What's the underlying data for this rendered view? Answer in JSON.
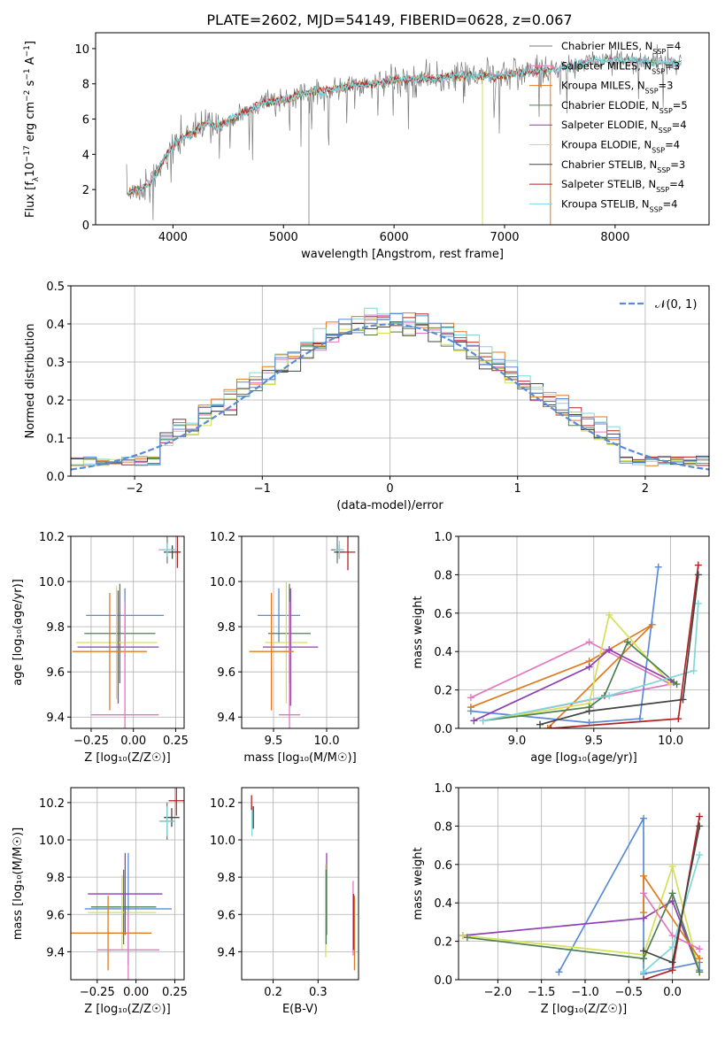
{
  "figure_title": "PLATE=2602, MJD=54149, FIBERID=0628, z=0.067",
  "colors": {
    "chabrier_miles": "#7a7a7a",
    "salpeter_miles": "#e377c2",
    "kroupa_miles": "#e07a1f",
    "chabrier_elodie": "#4f7f4f",
    "salpeter_elodie": "#8e3fb5",
    "kroupa_elodie": "#d4e157",
    "chabrier_stelib": "#444444",
    "salpeter_stelib": "#b22222",
    "kroupa_stelib": "#7fd6d8",
    "normal": "#5b8bd6"
  },
  "chart_data": [
    {
      "id": "spectrum",
      "type": "line",
      "xlabel": "wavelength [Angstrom, rest frame]",
      "ylabel_parts": [
        "Flux [f",
        "λ",
        "10",
        "−17",
        " erg cm",
        "−2",
        " s",
        "−1",
        " A",
        "−1",
        "]"
      ],
      "xlim": [
        3300,
        8850
      ],
      "ylim": [
        0,
        10.9
      ],
      "xticks": [
        4000,
        5000,
        6000,
        7000,
        8000
      ],
      "yticks": [
        0,
        2,
        4,
        6,
        8,
        10
      ],
      "legend": [
        {
          "label": "Chabrier MILES, N",
          "sub": "SSP",
          "tail": "=4",
          "color": "chabrier_miles"
        },
        {
          "label": "Salpeter MILES, N",
          "sub": "SSP",
          "tail": "=3",
          "color": "salpeter_miles"
        },
        {
          "label": "Kroupa MILES, N",
          "sub": "SSP",
          "tail": "=3",
          "color": "kroupa_miles"
        },
        {
          "label": "Chabrier ELODIE, N",
          "sub": "SSP",
          "tail": "=5",
          "color": "chabrier_elodie"
        },
        {
          "label": "Salpeter ELODIE, N",
          "sub": "SSP",
          "tail": "=4",
          "color": "salpeter_elodie"
        },
        {
          "label": "Kroupa ELODIE, N",
          "sub": "SSP",
          "tail": "=4",
          "color": "kroupa_elodie"
        },
        {
          "label": "Chabrier STELIB, N",
          "sub": "SSP",
          "tail": "=3",
          "color": "chabrier_stelib"
        },
        {
          "label": "Salpeter STELIB, N",
          "sub": "SSP",
          "tail": "=4",
          "color": "salpeter_stelib"
        },
        {
          "label": "Kroupa STELIB, N",
          "sub": "SSP",
          "tail": "=4",
          "color": "kroupa_stelib"
        }
      ],
      "continuum_x": [
        3600,
        3700,
        3800,
        3900,
        4000,
        4100,
        4200,
        4300,
        4400,
        4500,
        4600,
        4700,
        4800,
        4900,
        5000,
        5200,
        5400,
        5600,
        5800,
        6000,
        6200,
        6400,
        6600,
        6800,
        7000,
        7200,
        7400,
        7600,
        7800,
        8000,
        8200,
        8400,
        8600
      ],
      "continuum_y": [
        1.8,
        2.0,
        2.4,
        3.5,
        4.5,
        5.0,
        5.3,
        5.8,
        5.6,
        5.8,
        6.3,
        6.5,
        6.9,
        7.0,
        7.1,
        7.5,
        7.6,
        7.9,
        8.0,
        8.2,
        8.3,
        8.3,
        8.5,
        8.4,
        8.5,
        8.7,
        8.8,
        9.0,
        9.3,
        9.4,
        9.3,
        9.2,
        9.2
      ]
    },
    {
      "id": "residuals",
      "type": "histogram",
      "xlabel": "(data-model)/error",
      "ylabel": "Normed distribution",
      "xlim": [
        -2.5,
        2.5
      ],
      "ylim": [
        0,
        0.5
      ],
      "xticks": [
        -2,
        -1,
        0,
        1,
        2
      ],
      "xtick_labels": [
        "−2",
        "−1",
        "0",
        "1",
        "2"
      ],
      "yticks": [
        0.0,
        0.1,
        0.2,
        0.3,
        0.4,
        0.5
      ],
      "ytick_labels": [
        "0.0",
        "0.1",
        "0.2",
        "0.3",
        "0.4",
        "0.5"
      ],
      "bin_width": 0.1,
      "legend_label": "𝒩(0, 1)",
      "series": [
        {
          "color": "salpeter_miles",
          "shift": 0.0
        },
        {
          "color": "kroupa_miles",
          "shift": 0.012
        },
        {
          "color": "chabrier_elodie",
          "shift": -0.01
        },
        {
          "color": "salpeter_stelib",
          "shift": 0.008
        },
        {
          "color": "kroupa_elodie",
          "shift": -0.006
        },
        {
          "color": "kroupa_stelib",
          "shift": 0.014
        },
        {
          "color": "chabrier_stelib",
          "shift": -0.012
        },
        {
          "color": "normal",
          "shift": 0.004
        }
      ]
    },
    {
      "id": "age-vs-Z",
      "type": "errorbar",
      "xlabel": "Z [log₁₀(Z/Z☉)]",
      "ylabel": "age  [log₁₀(age/yr)]",
      "xlim": [
        -0.37,
        0.3
      ],
      "ylim": [
        9.35,
        10.2
      ],
      "xticks": [
        -0.25,
        0.0,
        0.25
      ],
      "xtick_labels": [
        "−0.25",
        "0.00",
        "0.25"
      ],
      "yticks": [
        9.4,
        9.6,
        9.8,
        10.0,
        10.2
      ],
      "ytick_labels": [
        "9.4",
        "9.6",
        "9.8",
        "10.0",
        "10.2"
      ],
      "points": [
        {
          "color": "normal",
          "x": -0.05,
          "y": 9.85,
          "xe": 0.23,
          "ye": 0.12
        },
        {
          "color": "chabrier_elodie",
          "x": -0.08,
          "y": 9.77,
          "xe": 0.21,
          "ye": 0.22
        },
        {
          "color": "kroupa_elodie",
          "x": -0.1,
          "y": 9.73,
          "xe": 0.24,
          "ye": 0.25
        },
        {
          "color": "salpeter_elodie",
          "x": -0.09,
          "y": 9.71,
          "xe": 0.24,
          "ye": 0.25
        },
        {
          "color": "kroupa_miles",
          "x": -0.14,
          "y": 9.69,
          "xe": 0.22,
          "ye": 0.26
        },
        {
          "color": "salpeter_miles",
          "x": -0.05,
          "y": 9.41,
          "xe": 0.2,
          "ye": 0.5
        },
        {
          "color": "chabrier_miles",
          "x": 0.2,
          "y": 10.14,
          "xe": 0.05,
          "ye": 0.06
        },
        {
          "color": "chabrier_stelib",
          "x": 0.23,
          "y": 10.13,
          "xe": 0.05,
          "ye": 0.03
        },
        {
          "color": "salpeter_stelib",
          "x": 0.26,
          "y": 10.13,
          "xe": 0.02,
          "ye": 0.07
        },
        {
          "color": "kroupa_stelib",
          "x": 0.2,
          "y": 10.14,
          "xe": 0.05,
          "ye": 0.03
        }
      ]
    },
    {
      "id": "age-vs-mass",
      "type": "errorbar",
      "xlabel": "mass [log₁₀(M/M☉)]",
      "ylabel": "",
      "xlim": [
        9.2,
        10.3
      ],
      "ylim": [
        9.35,
        10.2
      ],
      "xticks": [
        9.5,
        10.0
      ],
      "xtick_labels": [
        "9.5",
        "10.0"
      ],
      "yticks": [
        9.4,
        9.6,
        9.8,
        10.0,
        10.2
      ],
      "ytick_labels": [
        "9.4",
        "9.6",
        "9.8",
        "10.0",
        "10.2"
      ],
      "points": [
        {
          "color": "normal",
          "x": 9.55,
          "y": 9.85,
          "xe": 0.2,
          "ye": 0.12
        },
        {
          "color": "chabrier_elodie",
          "x": 9.65,
          "y": 9.77,
          "xe": 0.2,
          "ye": 0.22
        },
        {
          "color": "kroupa_elodie",
          "x": 9.62,
          "y": 9.73,
          "xe": 0.2,
          "ye": 0.27
        },
        {
          "color": "salpeter_elodie",
          "x": 9.66,
          "y": 9.71,
          "xe": 0.26,
          "ye": 0.26
        },
        {
          "color": "kroupa_miles",
          "x": 9.48,
          "y": 9.69,
          "xe": 0.21,
          "ye": 0.26
        },
        {
          "color": "salpeter_miles",
          "x": 9.65,
          "y": 9.41,
          "xe": 0.1,
          "ye": 0.5
        },
        {
          "color": "chabrier_miles",
          "x": 10.1,
          "y": 10.14,
          "xe": 0.06,
          "ye": 0.06
        },
        {
          "color": "chabrier_stelib",
          "x": 10.12,
          "y": 10.13,
          "xe": 0.05,
          "ye": 0.03
        },
        {
          "color": "salpeter_stelib",
          "x": 10.2,
          "y": 10.13,
          "xe": 0.07,
          "ye": 0.08
        },
        {
          "color": "kroupa_stelib",
          "x": 10.12,
          "y": 10.14,
          "xe": 0.04,
          "ye": 0.04
        }
      ]
    },
    {
      "id": "weight-vs-age",
      "type": "line",
      "xlabel": "age  [log₁₀(age/yr)]",
      "ylabel": "mass weight",
      "xlim": [
        8.62,
        10.25
      ],
      "ylim": [
        0.0,
        1.0
      ],
      "xticks": [
        9.0,
        9.5,
        10.0
      ],
      "xtick_labels": [
        "9.0",
        "9.5",
        "10.0"
      ],
      "yticks": [
        0.0,
        0.2,
        0.4,
        0.6,
        0.8,
        1.0
      ],
      "ytick_labels": [
        "0.0",
        "0.2",
        "0.4",
        "0.6",
        "0.8",
        "1.0"
      ],
      "series": [
        {
          "color": "salpeter_miles",
          "x": [
            8.7,
            9.47,
            10.0,
            8.78
          ],
          "y": [
            0.16,
            0.45,
            0.23,
            0.04
          ]
        },
        {
          "color": "kroupa_miles",
          "x": [
            8.7,
            9.47,
            9.88,
            9.2
          ],
          "y": [
            0.11,
            0.35,
            0.54,
            0.0
          ]
        },
        {
          "color": "normal",
          "x": [
            8.7,
            9.47,
            9.8,
            9.92
          ],
          "y": [
            0.09,
            0.03,
            0.05,
            0.84
          ]
        },
        {
          "color": "kroupa_elodie",
          "x": [
            8.78,
            9.47,
            9.6,
            10.0
          ],
          "y": [
            0.04,
            0.13,
            0.59,
            0.23
          ]
        },
        {
          "color": "salpeter_elodie",
          "x": [
            8.72,
            9.47,
            9.6,
            10.02
          ],
          "y": [
            0.04,
            0.32,
            0.41,
            0.24
          ]
        },
        {
          "color": "chabrier_elodie",
          "x": [
            8.78,
            9.47,
            9.57,
            9.72,
            10.04
          ],
          "y": [
            0.04,
            0.11,
            0.17,
            0.45,
            0.23
          ]
        },
        {
          "color": "kroupa_stelib",
          "x": [
            8.78,
            9.6,
            10.15,
            10.18
          ],
          "y": [
            0.04,
            0.17,
            0.3,
            0.65
          ]
        },
        {
          "color": "salpeter_stelib",
          "x": [
            9.22,
            10.05,
            10.18
          ],
          "y": [
            0.0,
            0.05,
            0.85
          ]
        },
        {
          "color": "chabrier_stelib",
          "x": [
            9.15,
            9.47,
            10.08,
            10.18
          ],
          "y": [
            0.02,
            0.09,
            0.15,
            0.8
          ]
        }
      ]
    },
    {
      "id": "mass-vs-Z",
      "type": "errorbar",
      "xlabel": "Z [log₁₀(Z/Z☉)]",
      "ylabel": "mass [log₁₀(M/M☉)]",
      "xlim": [
        -0.42,
        0.31
      ],
      "ylim": [
        9.25,
        10.28
      ],
      "xticks": [
        -0.25,
        0.0,
        0.25
      ],
      "xtick_labels": [
        "−0.25",
        "0.00",
        "0.25"
      ],
      "yticks": [
        9.4,
        9.6,
        9.8,
        10.0,
        10.2
      ],
      "ytick_labels": [
        "9.4",
        "9.6",
        "9.8",
        "10.0",
        "10.2"
      ],
      "points": [
        {
          "color": "normal",
          "x": -0.05,
          "y": 9.63,
          "xe": 0.28,
          "ye": 0.3
        },
        {
          "color": "chabrier_elodie",
          "x": -0.08,
          "y": 9.64,
          "xe": 0.21,
          "ye": 0.2
        },
        {
          "color": "kroupa_elodie",
          "x": -0.09,
          "y": 9.61,
          "xe": 0.22,
          "ye": 0.2
        },
        {
          "color": "salpeter_elodie",
          "x": -0.07,
          "y": 9.71,
          "xe": 0.24,
          "ye": 0.22
        },
        {
          "color": "kroupa_miles",
          "x": -0.18,
          "y": 9.5,
          "xe": 0.28,
          "ye": 0.2
        },
        {
          "color": "salpeter_miles",
          "x": -0.05,
          "y": 9.41,
          "xe": 0.2,
          "ye": 0.2
        },
        {
          "color": "chabrier_miles",
          "x": 0.2,
          "y": 10.1,
          "xe": 0.05,
          "ye": 0.1
        },
        {
          "color": "chabrier_stelib",
          "x": 0.23,
          "y": 10.12,
          "xe": 0.05,
          "ye": 0.05
        },
        {
          "color": "salpeter_stelib",
          "x": 0.26,
          "y": 10.21,
          "xe": 0.05,
          "ye": 0.08
        },
        {
          "color": "kroupa_stelib",
          "x": 0.2,
          "y": 10.1,
          "xe": 0.05,
          "ye": 0.08
        }
      ]
    },
    {
      "id": "mass-vs-ebv",
      "type": "errorbar",
      "xlabel": "E(B-V)",
      "ylabel": "",
      "xlim": [
        0.13,
        0.39
      ],
      "ylim": [
        9.25,
        10.28
      ],
      "xticks": [
        0.2,
        0.3
      ],
      "xtick_labels": [
        "0.2",
        "0.3"
      ],
      "yticks": [
        9.4,
        9.6,
        9.8,
        10.0,
        10.2
      ],
      "ytick_labels": [
        "9.4",
        "9.6",
        "9.8",
        "10.0",
        "10.2"
      ],
      "points": [
        {
          "color": "kroupa_stelib",
          "x": 0.153,
          "y": 10.1,
          "xe": 0,
          "ye": 0.08
        },
        {
          "color": "chabrier_stelib",
          "x": 0.156,
          "y": 10.12,
          "xe": 0,
          "ye": 0.06
        },
        {
          "color": "salpeter_stelib",
          "x": 0.152,
          "y": 10.2,
          "xe": 0,
          "ye": 0.04
        },
        {
          "color": "salpeter_elodie",
          "x": 0.319,
          "y": 9.71,
          "xe": 0,
          "ye": 0.22
        },
        {
          "color": "kroupa_elodie",
          "x": 0.317,
          "y": 9.62,
          "xe": 0,
          "ye": 0.25
        },
        {
          "color": "chabrier_elodie",
          "x": 0.318,
          "y": 9.64,
          "xe": 0,
          "ye": 0.2
        },
        {
          "color": "salpeter_miles",
          "x": 0.378,
          "y": 9.58,
          "xe": 0,
          "ye": 0.2
        },
        {
          "color": "kroupa_miles",
          "x": 0.381,
          "y": 9.5,
          "xe": 0,
          "ye": 0.2
        },
        {
          "color": "salpeter_stelib",
          "x": 0.379,
          "y": 9.56,
          "xe": 0,
          "ye": 0.15
        }
      ]
    },
    {
      "id": "weight-vs-Z",
      "type": "line",
      "xlabel": "Z [log₁₀(Z/Z☉)]",
      "ylabel": "mass weight",
      "xlim": [
        -2.45,
        0.42
      ],
      "ylim": [
        0.0,
        1.0
      ],
      "xticks": [
        -2.0,
        -1.5,
        -1.0,
        -0.5,
        0.0
      ],
      "xtick_labels": [
        "−2.0",
        "−1.5",
        "−1.0",
        "−0.5",
        "0.0"
      ],
      "yticks": [
        0.0,
        0.2,
        0.4,
        0.6,
        0.8,
        1.0
      ],
      "ytick_labels": [
        "0.0",
        "0.2",
        "0.4",
        "0.6",
        "0.8",
        "1.0"
      ],
      "series": [
        {
          "color": "normal",
          "x": [
            -1.3,
            -0.33,
            -0.33,
            0.31,
            0.31
          ],
          "y": [
            0.04,
            0.84,
            0.03,
            0.09,
            0.05
          ]
        },
        {
          "color": "salpeter_elodie",
          "x": [
            -2.4,
            -0.33,
            0.0,
            0.31
          ],
          "y": [
            0.23,
            0.32,
            0.41,
            0.04
          ]
        },
        {
          "color": "kroupa_elodie",
          "x": [
            -2.4,
            -0.33,
            0.0,
            0.31
          ],
          "y": [
            0.23,
            0.13,
            0.59,
            0.04
          ]
        },
        {
          "color": "chabrier_elodie",
          "x": [
            -2.35,
            -0.33,
            0.0,
            0.31
          ],
          "y": [
            0.22,
            0.11,
            0.45,
            0.04
          ]
        },
        {
          "color": "kroupa_miles",
          "x": [
            -0.33,
            -0.33,
            0.31
          ],
          "y": [
            0.35,
            0.54,
            0.11
          ]
        },
        {
          "color": "salpeter_miles",
          "x": [
            -0.33,
            0.0,
            0.31
          ],
          "y": [
            0.45,
            0.23,
            0.16
          ]
        },
        {
          "color": "kroupa_stelib",
          "x": [
            -0.33,
            0.0,
            0.31
          ],
          "y": [
            0.04,
            0.17,
            0.65
          ]
        },
        {
          "color": "salpeter_stelib",
          "x": [
            -0.33,
            0.0,
            0.31
          ],
          "y": [
            0.0,
            0.05,
            0.85
          ]
        },
        {
          "color": "chabrier_stelib",
          "x": [
            -0.33,
            0.0,
            0.31
          ],
          "y": [
            0.15,
            0.09,
            0.8
          ]
        }
      ]
    }
  ]
}
